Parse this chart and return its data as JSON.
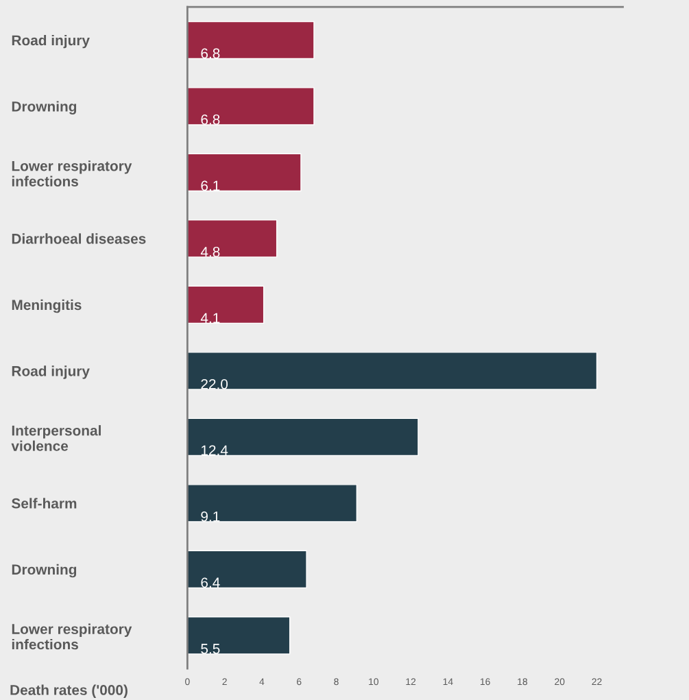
{
  "chart_data": {
    "type": "bar",
    "orientation": "horizontal",
    "xlabel": "Death rates ('000)",
    "categories": [
      "Road injury",
      "Drowning",
      "Lower respiratory\ninfections",
      "Diarrhoeal diseases",
      "Meningitis",
      "Road injury",
      "Interpersonal\nviolence",
      "Self-harm",
      "Drowning",
      "Lower respiratory\ninfections"
    ],
    "values": [
      6.8,
      6.8,
      6.1,
      4.8,
      4.1,
      22.0,
      12.4,
      9.1,
      6.4,
      5.5
    ],
    "colors": [
      "#9b2743",
      "#9b2743",
      "#9b2743",
      "#9b2743",
      "#9b2743",
      "#233e4b",
      "#233e4b",
      "#233e4b",
      "#233e4b",
      "#233e4b"
    ],
    "value_labels": [
      "6.8",
      "6.8",
      "6.1",
      "4.8",
      "4.1",
      "22.0",
      "12.4",
      "9.1",
      "6.4",
      "5.5"
    ],
    "xlim": [
      0,
      23.4
    ],
    "xticks": [
      0,
      2,
      4,
      6,
      8,
      10,
      12,
      14,
      16,
      18,
      20,
      22
    ],
    "grid": false,
    "legend": false
  }
}
